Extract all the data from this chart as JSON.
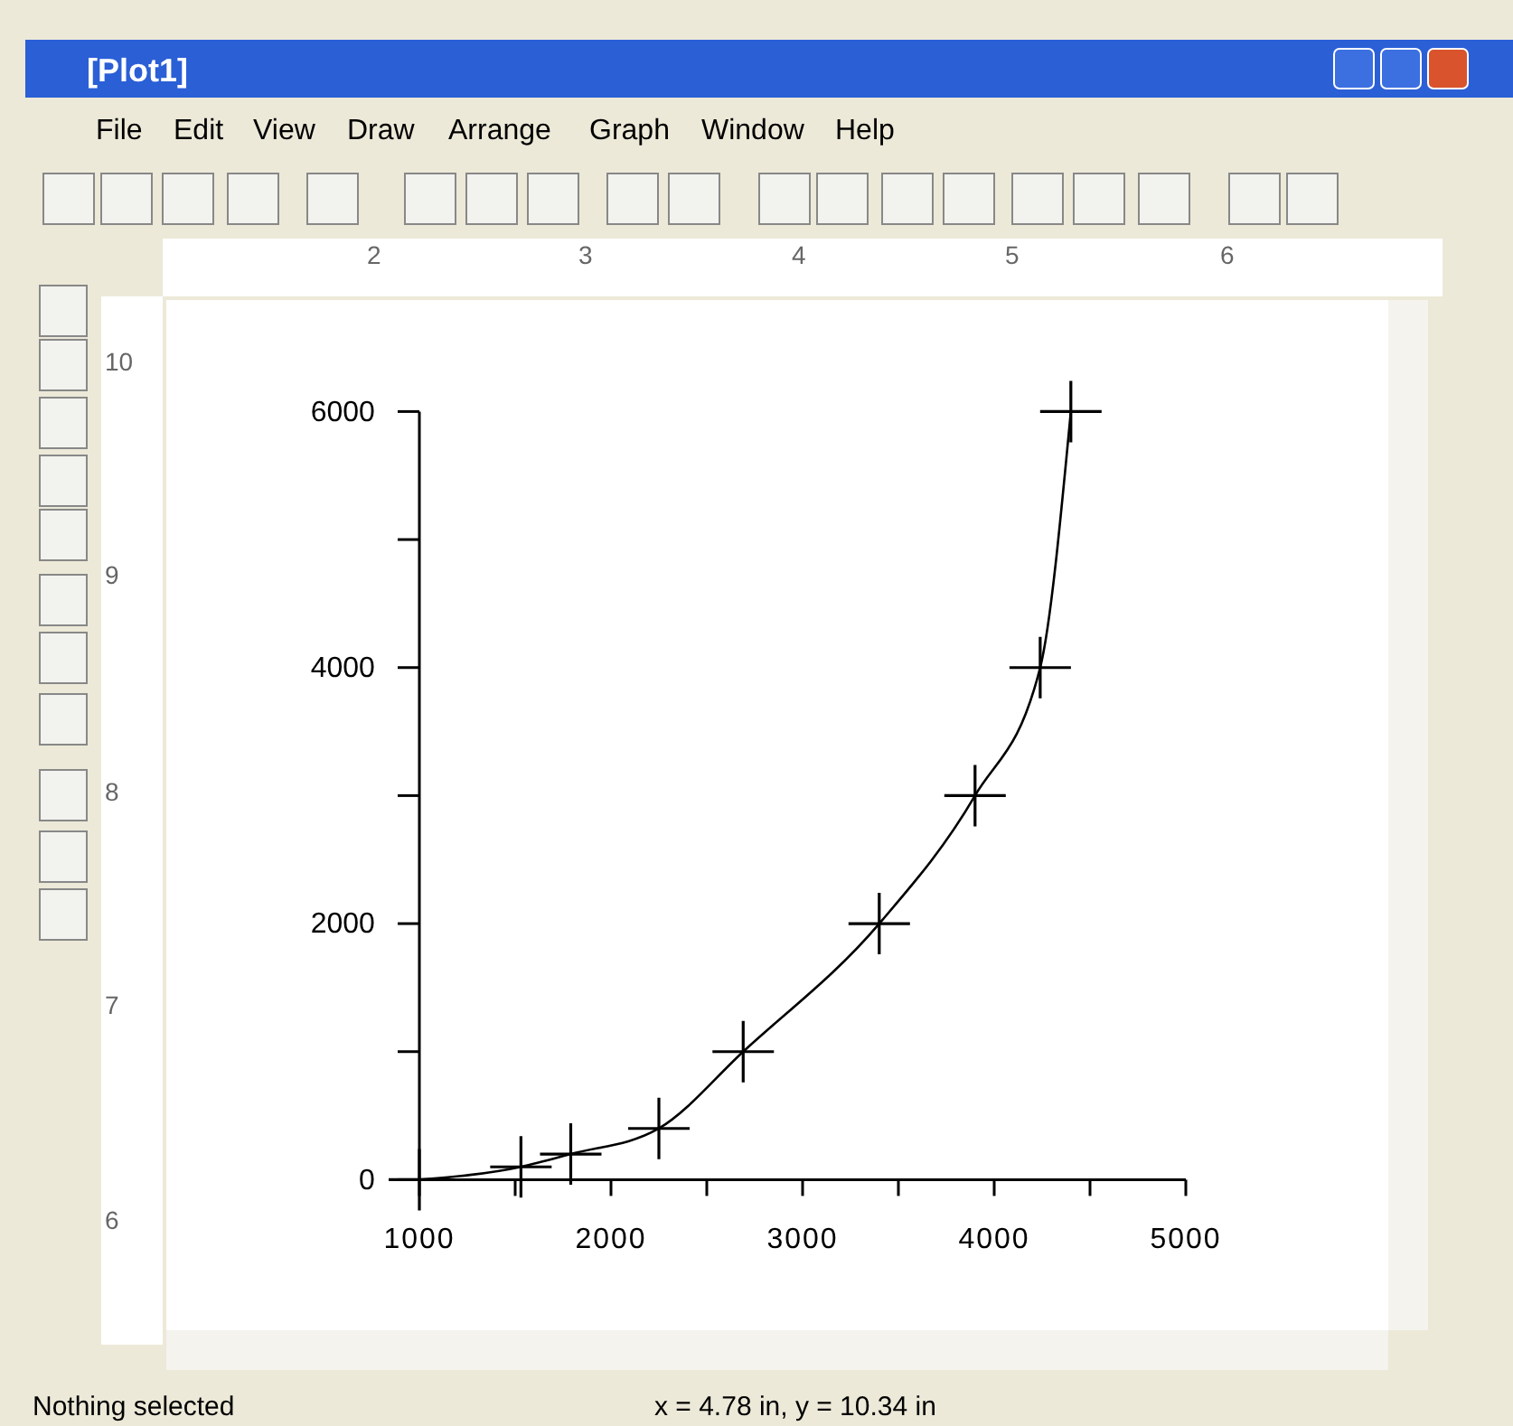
{
  "chart_data": {
    "type": "line",
    "x": [
      1000,
      1530,
      1790,
      2250,
      2690,
      3400,
      3900,
      4240,
      4400
    ],
    "series": [
      {
        "color": "#000000",
        "values": [
          0,
          100,
          200,
          400,
          1000,
          2000,
          3000,
          4000,
          6000
        ]
      }
    ],
    "marker": "cross",
    "line_style": "solid",
    "xlim": [
      1000,
      5000
    ],
    "xticks": [
      1000,
      {
        "value": 1500,
        "label": null
      },
      2000,
      {
        "value": 2500,
        "label": null
      },
      3000,
      {
        "value": 3500,
        "label": null
      },
      4000,
      {
        "value": 4500,
        "label": null
      },
      5000
    ],
    "ylim": [
      0,
      6000
    ],
    "yticks": [
      0,
      {
        "value": 1000,
        "label": null
      },
      2000,
      {
        "value": 3000,
        "label": null
      },
      4000,
      {
        "value": 5000,
        "label": null
      },
      6000
    ],
    "annotations": [
      "[Plot1]",
      "File",
      "Edit",
      "View",
      "Draw",
      "Arrange",
      "Graph",
      "Window",
      "Help",
      "Nothing selected",
      "x = 4.78 in, y = 10.34 in",
      "2",
      "3",
      "4",
      "5",
      "6",
      "10",
      "9",
      "8",
      "7",
      "6"
    ]
  }
}
